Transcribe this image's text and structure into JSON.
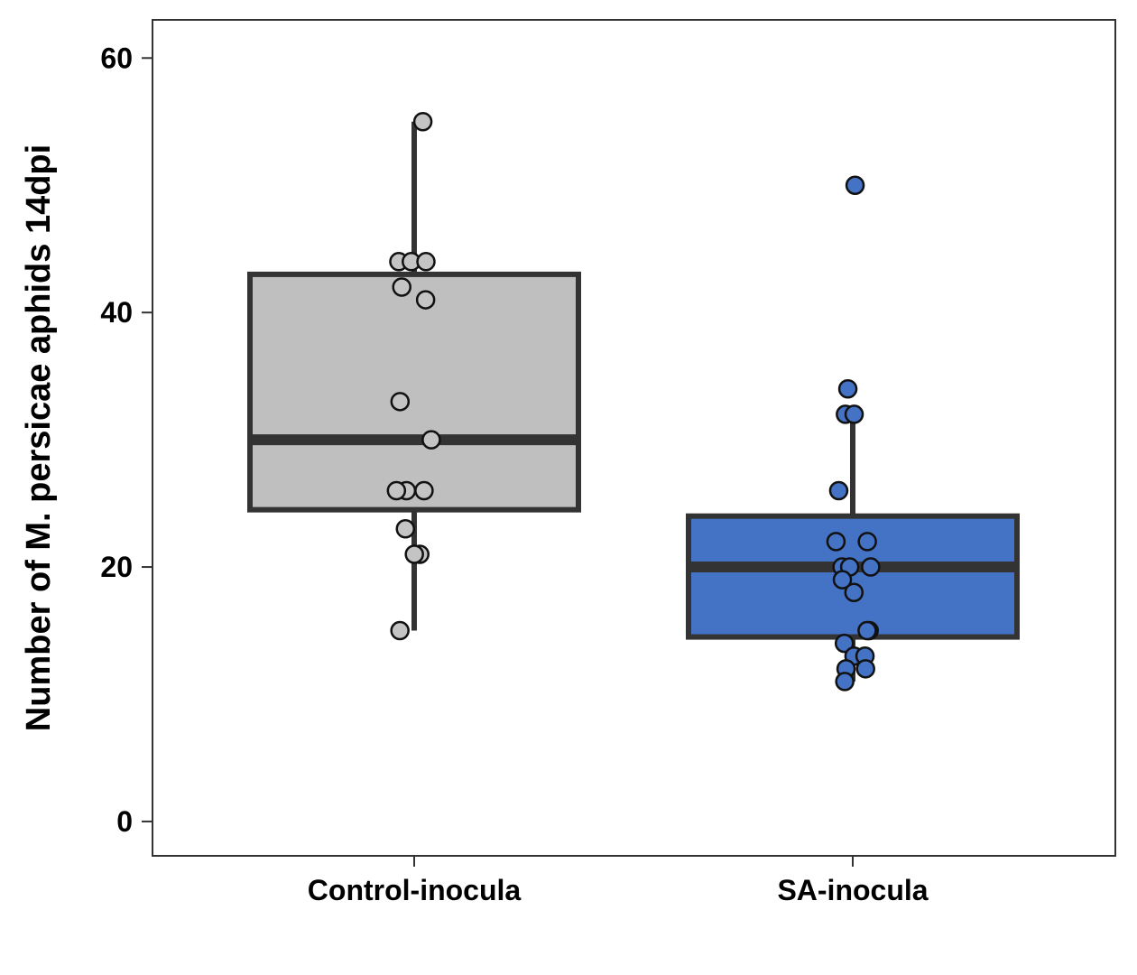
{
  "chart_data": {
    "type": "box",
    "title": "",
    "xlabel": "",
    "ylabel": "Number of M. persicae aphids 14dpi",
    "ylim": [
      -2.7,
      63
    ],
    "yticks": [
      0,
      20,
      40,
      60
    ],
    "grid": false,
    "legend": "none",
    "categories": [
      "Control-inocula",
      "SA-inocula"
    ],
    "groups": [
      {
        "name": "Control-inocula",
        "fill": "#bfbfbf",
        "point_fill": "#c4c4c4",
        "stats": {
          "whisker_low": 15,
          "q1": 24.5,
          "median": 30,
          "q3": 43,
          "whisker_high": 55
        },
        "points": [
          55,
          44,
          44,
          44,
          42,
          41,
          33,
          30,
          26,
          26,
          26,
          23,
          21,
          21,
          15
        ]
      },
      {
        "name": "SA-inocula",
        "fill": "#4472c4",
        "point_fill": "#4472c4",
        "stats": {
          "whisker_low": 11,
          "q1": 14.5,
          "median": 20,
          "q3": 24,
          "whisker_high": 32
        },
        "points": [
          50,
          34,
          32,
          32,
          26,
          22,
          22,
          20,
          20,
          20,
          19,
          18,
          15,
          15,
          14,
          13,
          13,
          12,
          12,
          11
        ]
      }
    ]
  }
}
